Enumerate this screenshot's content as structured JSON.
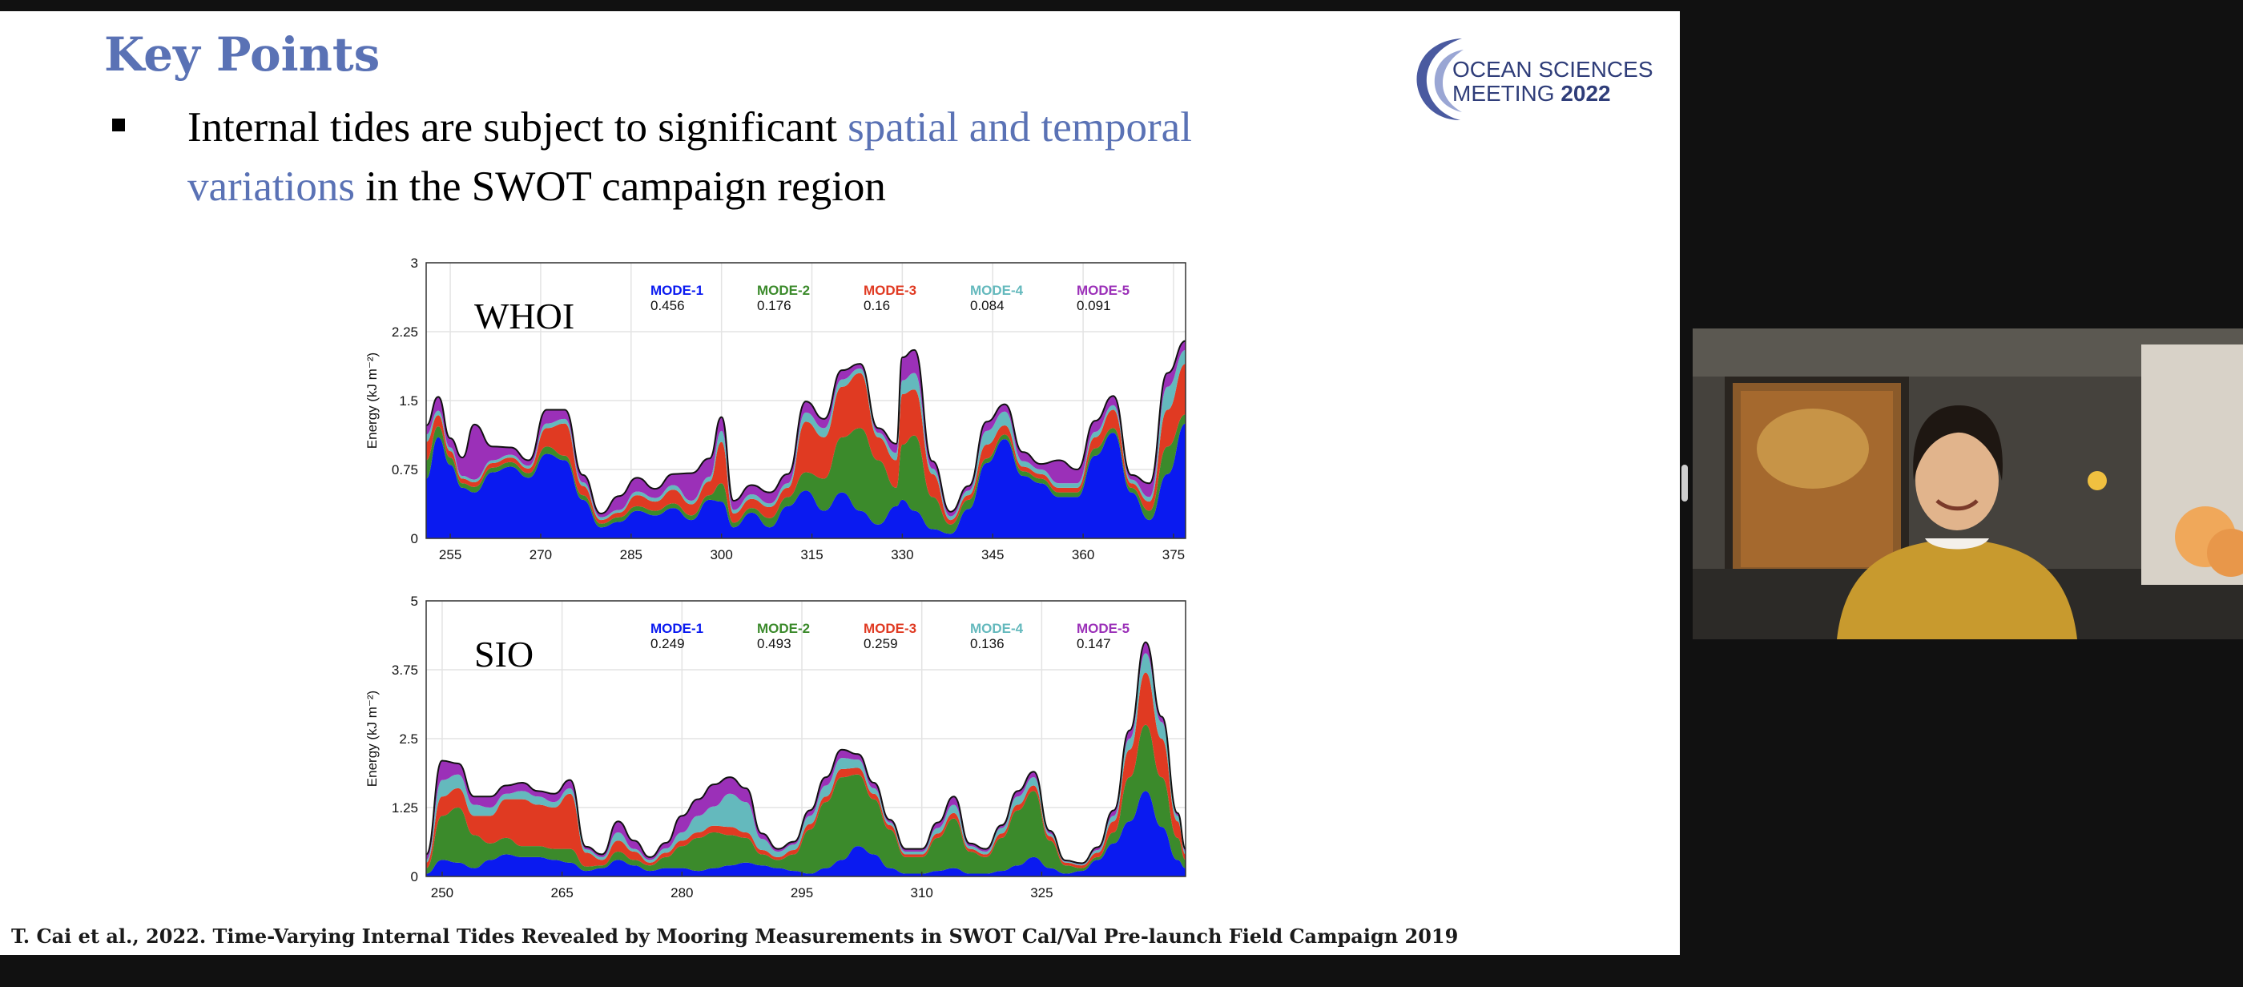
{
  "slide": {
    "title": "Key Points",
    "bullet_plain_1": "Internal tides are subject to significant ",
    "bullet_accent": "spatial and temporal variations",
    "bullet_plain_2": " in the SWOT campaign region",
    "citation": "T. Cai et al., 2022. Time-Varying Internal Tides Revealed by Mooring Measurements in SWOT Cal/Val Pre-launch Field Campaign 2019",
    "logo": {
      "line1": "OCEAN SCIENCES",
      "line2_a": "MEETING ",
      "line2_b": "2022"
    }
  },
  "colors": {
    "accent": "#5a72b5",
    "mode1": "#0a1af0",
    "mode2": "#3b8a2b",
    "mode3": "#e03a22",
    "mode4": "#64b9bd",
    "mode5": "#9b30b8"
  },
  "chart_data": [
    {
      "type": "area",
      "title": "WHOI",
      "xlabel": "",
      "ylabel": "Energy (kJ m⁻²)",
      "xlim": [
        251,
        377
      ],
      "ylim": [
        0,
        3
      ],
      "x_ticks": [
        255,
        270,
        285,
        300,
        315,
        330,
        345,
        360,
        375
      ],
      "y_ticks": [
        0,
        0.75,
        1.5,
        2.25,
        3
      ],
      "y_tick_labels": [
        "0",
        "0.75",
        "1.5",
        "2.25",
        "3"
      ],
      "grid": true,
      "stacked": true,
      "x": [
        251,
        253,
        255,
        257,
        259,
        262,
        265,
        268,
        271,
        274,
        277,
        280,
        283,
        286,
        289,
        292,
        295,
        298,
        300,
        302,
        305,
        308,
        311,
        314,
        317,
        320,
        323,
        326,
        329,
        330,
        332,
        335,
        338,
        341,
        344,
        347,
        350,
        353,
        356,
        359,
        362,
        365,
        368,
        371,
        374,
        377
      ],
      "series": [
        {
          "name": "MODE-1",
          "legend_value": "0.456",
          "values": [
            0.65,
            1.1,
            0.8,
            0.55,
            0.5,
            0.72,
            0.78,
            0.66,
            0.92,
            0.85,
            0.42,
            0.12,
            0.18,
            0.3,
            0.25,
            0.33,
            0.2,
            0.42,
            0.4,
            0.12,
            0.28,
            0.12,
            0.35,
            0.52,
            0.3,
            0.5,
            0.3,
            0.15,
            0.35,
            0.42,
            0.3,
            0.1,
            0.05,
            0.32,
            0.82,
            1.08,
            0.68,
            0.6,
            0.45,
            0.45,
            0.9,
            1.15,
            0.5,
            0.2,
            0.7,
            1.25
          ]
        },
        {
          "name": "MODE-2",
          "legend_value": "0.176",
          "values": [
            0.2,
            0.12,
            0.08,
            0.05,
            0.06,
            0.05,
            0.05,
            0.05,
            0.08,
            0.05,
            0.05,
            0.04,
            0.05,
            0.05,
            0.05,
            0.05,
            0.05,
            0.05,
            0.2,
            0.05,
            0.05,
            0.1,
            0.1,
            0.2,
            0.35,
            0.6,
            0.9,
            0.7,
            0.2,
            0.6,
            0.82,
            0.35,
            0.1,
            0.1,
            0.05,
            0.05,
            0.05,
            0.05,
            0.05,
            0.05,
            0.08,
            0.05,
            0.05,
            0.1,
            0.3,
            0.1
          ]
        },
        {
          "name": "MODE-3",
          "legend_value": "0.16",
          "values": [
            0.2,
            0.12,
            0.07,
            0.05,
            0.05,
            0.05,
            0.05,
            0.05,
            0.2,
            0.35,
            0.1,
            0.04,
            0.05,
            0.12,
            0.1,
            0.15,
            0.12,
            0.15,
            0.45,
            0.1,
            0.1,
            0.12,
            0.1,
            0.55,
            0.45,
            0.55,
            0.6,
            0.25,
            0.3,
            0.55,
            0.5,
            0.25,
            0.05,
            0.05,
            0.15,
            0.1,
            0.05,
            0.05,
            0.05,
            0.05,
            0.12,
            0.2,
            0.05,
            0.1,
            0.4,
            0.55
          ]
        },
        {
          "name": "MODE-4",
          "legend_value": "0.084",
          "values": [
            0.08,
            0.05,
            0.04,
            0.03,
            0.03,
            0.03,
            0.03,
            0.03,
            0.05,
            0.05,
            0.04,
            0.03,
            0.03,
            0.04,
            0.04,
            0.05,
            0.04,
            0.05,
            0.12,
            0.04,
            0.05,
            0.04,
            0.05,
            0.1,
            0.1,
            0.08,
            0.05,
            0.05,
            0.08,
            0.15,
            0.18,
            0.06,
            0.04,
            0.05,
            0.15,
            0.15,
            0.06,
            0.05,
            0.05,
            0.05,
            0.06,
            0.05,
            0.04,
            0.05,
            0.25,
            0.15
          ]
        },
        {
          "name": "MODE-5",
          "legend_value": "0.091",
          "values": [
            0.1,
            0.15,
            0.1,
            0.2,
            0.6,
            0.15,
            0.08,
            0.06,
            0.15,
            0.1,
            0.08,
            0.04,
            0.15,
            0.15,
            0.1,
            0.12,
            0.3,
            0.2,
            0.15,
            0.1,
            0.1,
            0.12,
            0.1,
            0.12,
            0.1,
            0.1,
            0.05,
            0.05,
            0.1,
            0.25,
            0.25,
            0.08,
            0.05,
            0.05,
            0.1,
            0.08,
            0.1,
            0.06,
            0.25,
            0.15,
            0.12,
            0.1,
            0.05,
            0.15,
            0.15,
            0.1
          ]
        }
      ]
    },
    {
      "type": "area",
      "title": "SIO",
      "xlabel": "",
      "ylabel": "Energy (kJ m⁻²)",
      "xlim": [
        248,
        343
      ],
      "ylim": [
        0,
        5
      ],
      "x_ticks": [
        250,
        265,
        280,
        295,
        310,
        325
      ],
      "y_ticks": [
        0,
        1.25,
        2.5,
        3.75,
        5
      ],
      "y_tick_labels": [
        "0",
        "1.25",
        "2.5",
        "3.75",
        "5"
      ],
      "grid": true,
      "stacked": true,
      "x": [
        248,
        250,
        252,
        254,
        256,
        258,
        260,
        262,
        264,
        266,
        268,
        270,
        272,
        274,
        276,
        278,
        280,
        282,
        284,
        286,
        288,
        290,
        292,
        294,
        296,
        298,
        300,
        302,
        304,
        306,
        308,
        310,
        312,
        314,
        316,
        318,
        320,
        322,
        324,
        326,
        328,
        330,
        332,
        334,
        336,
        338,
        340,
        342,
        343
      ],
      "series": [
        {
          "name": "MODE-1",
          "legend_value": "0.249",
          "values": [
            0.05,
            0.3,
            0.25,
            0.15,
            0.3,
            0.4,
            0.35,
            0.35,
            0.3,
            0.25,
            0.1,
            0.15,
            0.3,
            0.2,
            0.1,
            0.15,
            0.15,
            0.1,
            0.15,
            0.2,
            0.25,
            0.2,
            0.15,
            0.1,
            0.05,
            0.15,
            0.3,
            0.55,
            0.4,
            0.15,
            0.05,
            0.05,
            0.1,
            0.15,
            0.05,
            0.05,
            0.1,
            0.2,
            0.35,
            0.15,
            0.05,
            0.1,
            0.3,
            0.6,
            1.0,
            1.55,
            0.9,
            0.3,
            0.15
          ]
        },
        {
          "name": "MODE-2",
          "legend_value": "0.493",
          "values": [
            0.1,
            0.8,
            1.0,
            0.6,
            0.3,
            0.3,
            0.2,
            0.2,
            0.2,
            0.25,
            0.08,
            0.05,
            0.15,
            0.1,
            0.1,
            0.2,
            0.4,
            0.6,
            0.65,
            0.55,
            0.45,
            0.2,
            0.15,
            0.3,
            0.8,
            1.2,
            1.5,
            1.3,
            1.0,
            0.7,
            0.3,
            0.3,
            0.6,
            0.9,
            0.4,
            0.3,
            0.6,
            1.0,
            1.2,
            0.5,
            0.15,
            0.05,
            0.05,
            0.2,
            0.8,
            1.2,
            0.9,
            0.4,
            0.15
          ]
        },
        {
          "name": "MODE-3",
          "legend_value": "0.259",
          "values": [
            0.1,
            0.35,
            0.35,
            0.35,
            0.5,
            0.7,
            0.85,
            0.75,
            0.75,
            1.0,
            0.25,
            0.1,
            0.2,
            0.15,
            0.05,
            0.08,
            0.1,
            0.1,
            0.12,
            0.15,
            0.1,
            0.08,
            0.05,
            0.08,
            0.1,
            0.1,
            0.15,
            0.12,
            0.1,
            0.08,
            0.05,
            0.05,
            0.08,
            0.1,
            0.05,
            0.05,
            0.08,
            0.1,
            0.1,
            0.08,
            0.05,
            0.05,
            0.08,
            0.2,
            0.5,
            0.95,
            0.7,
            0.3,
            0.1
          ]
        },
        {
          "name": "MODE-4",
          "legend_value": "0.136",
          "values": [
            0.05,
            0.3,
            0.25,
            0.2,
            0.15,
            0.1,
            0.15,
            0.15,
            0.1,
            0.1,
            0.06,
            0.05,
            0.15,
            0.05,
            0.05,
            0.08,
            0.15,
            0.3,
            0.35,
            0.6,
            0.55,
            0.2,
            0.1,
            0.1,
            0.15,
            0.2,
            0.2,
            0.15,
            0.1,
            0.05,
            0.05,
            0.05,
            0.1,
            0.15,
            0.05,
            0.05,
            0.1,
            0.15,
            0.15,
            0.05,
            0.02,
            0.02,
            0.05,
            0.1,
            0.2,
            0.35,
            0.3,
            0.1,
            0.05
          ]
        },
        {
          "name": "MODE-5",
          "legend_value": "0.147",
          "values": [
            0.1,
            0.35,
            0.2,
            0.15,
            0.2,
            0.15,
            0.15,
            0.1,
            0.15,
            0.15,
            0.05,
            0.05,
            0.2,
            0.15,
            0.05,
            0.1,
            0.3,
            0.3,
            0.4,
            0.3,
            0.25,
            0.1,
            0.05,
            0.05,
            0.1,
            0.15,
            0.15,
            0.1,
            0.1,
            0.05,
            0.05,
            0.05,
            0.1,
            0.15,
            0.05,
            0.05,
            0.05,
            0.1,
            0.1,
            0.05,
            0.02,
            0.02,
            0.05,
            0.1,
            0.15,
            0.2,
            0.1,
            0.05,
            0.05
          ]
        }
      ]
    }
  ]
}
